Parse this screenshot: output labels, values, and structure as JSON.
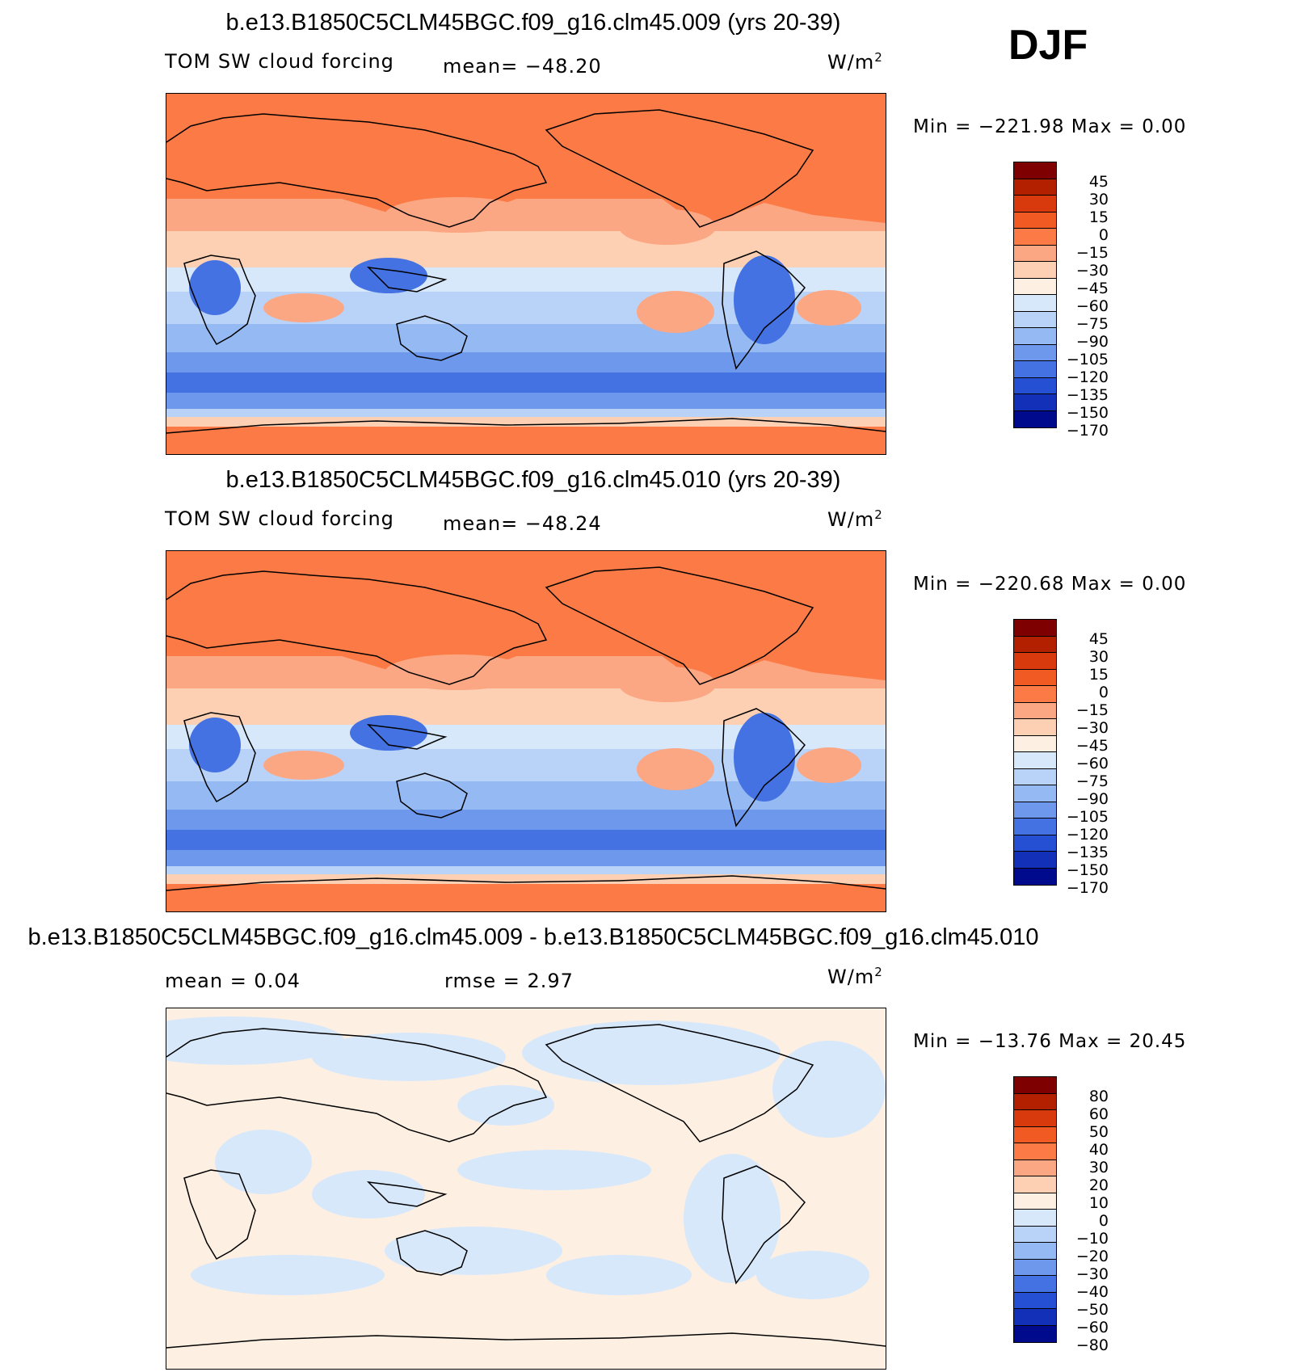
{
  "season": "DJF",
  "panels": [
    {
      "title": "b.e13.B1850C5CLM45BGC.f09_g16.clm45.009 (yrs 20-39)",
      "variable": "TOM SW cloud forcing",
      "mean_text": "mean= −48.20",
      "units_base": "W/m",
      "units_exp": "2",
      "minmax": "Min = −221.98 Max =   0.00",
      "colorbar_labels": [
        "45",
        "30",
        "15",
        "0",
        "−15",
        "−30",
        "−45",
        "−60",
        "−75",
        "−90",
        "−105",
        "−120",
        "−135",
        "−150",
        "−170"
      ]
    },
    {
      "title": "b.e13.B1850C5CLM45BGC.f09_g16.clm45.010 (yrs 20-39)",
      "variable": "TOM SW cloud forcing",
      "mean_text": "mean= −48.24",
      "units_base": "W/m",
      "units_exp": "2",
      "minmax": "Min = −220.68 Max =   0.00",
      "colorbar_labels": [
        "45",
        "30",
        "15",
        "0",
        "−15",
        "−30",
        "−45",
        "−60",
        "−75",
        "−90",
        "−105",
        "−120",
        "−135",
        "−150",
        "−170"
      ]
    },
    {
      "title": "b.e13.B1850C5CLM45BGC.f09_g16.clm45.009 - b.e13.B1850C5CLM45BGC.f09_g16.clm45.010",
      "mean_text": "mean =   0.04",
      "rmse_text": "rmse =   2.97",
      "units_base": "W/m",
      "units_exp": "2",
      "minmax": "Min = −13.76 Max =  20.45",
      "colorbar_labels": [
        "80",
        "60",
        "50",
        "40",
        "30",
        "20",
        "10",
        "0",
        "−10",
        "−20",
        "−30",
        "−40",
        "−50",
        "−60",
        "−80"
      ]
    }
  ],
  "colors": {
    "scale": [
      "#7f0000",
      "#b22000",
      "#d83a0e",
      "#f25a24",
      "#fb7a45",
      "#fca784",
      "#fdd0b4",
      "#fdefe2",
      "#d8e8fb",
      "#b9d2f7",
      "#94b9f3",
      "#6d98eb",
      "#4472e2",
      "#2650d4",
      "#1230b8",
      "#000a8c"
    ]
  },
  "chart_data": [
    {
      "type": "heatmap",
      "title": "b.e13.B1850C5CLM45BGC.f09_g16.clm45.009 (yrs 20-39)",
      "field": "TOM SW cloud forcing",
      "season": "DJF",
      "units": "W/m2",
      "mean": -48.2,
      "min": -221.98,
      "max": 0.0,
      "contour_levels": [
        45,
        30,
        15,
        0,
        -15,
        -30,
        -45,
        -60,
        -75,
        -90,
        -105,
        -120,
        -135,
        -150,
        -170
      ]
    },
    {
      "type": "heatmap",
      "title": "b.e13.B1850C5CLM45BGC.f09_g16.clm45.010 (yrs 20-39)",
      "field": "TOM SW cloud forcing",
      "season": "DJF",
      "units": "W/m2",
      "mean": -48.24,
      "min": -220.68,
      "max": 0.0,
      "contour_levels": [
        45,
        30,
        15,
        0,
        -15,
        -30,
        -45,
        -60,
        -75,
        -90,
        -105,
        -120,
        -135,
        -150,
        -170
      ]
    },
    {
      "type": "heatmap",
      "title": "b.e13.B1850C5CLM45BGC.f09_g16.clm45.009 - b.e13.B1850C5CLM45BGC.f09_g16.clm45.010",
      "field": "difference",
      "season": "DJF",
      "units": "W/m2",
      "mean": 0.04,
      "rmse": 2.97,
      "min": -13.76,
      "max": 20.45,
      "contour_levels": [
        80,
        60,
        50,
        40,
        30,
        20,
        10,
        0,
        -10,
        -20,
        -30,
        -40,
        -50,
        -60,
        -80
      ]
    }
  ]
}
